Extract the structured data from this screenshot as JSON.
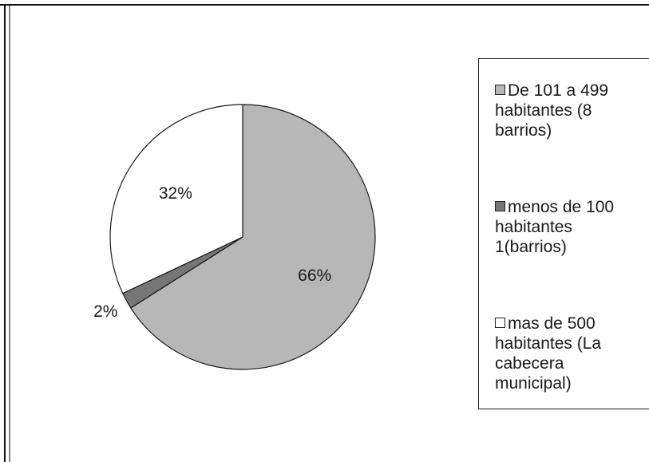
{
  "chart_data": {
    "type": "pie",
    "slices": [
      {
        "label": "De 101 a 499 habitantes (8 barrios)",
        "value": 66,
        "display": "66%",
        "color": "#b7b7b7"
      },
      {
        "label": "menos de 100 habitantes 1(barrios)",
        "value": 2,
        "display": "2%",
        "color": "#767676"
      },
      {
        "label": "mas de 500 habitantes (La cabecera municipal)",
        "value": 32,
        "display": "32%",
        "color": "#ffffff"
      }
    ],
    "legend": {
      "placement": "right",
      "entries": [
        {
          "text": "De 101 a 499\nhabitantes (8\nbarrios)",
          "color": "#b7b7b7"
        },
        {
          "text": "menos de 100\nhabitantes\n1(barrios)",
          "color": "#767676"
        },
        {
          "text": "mas de 500\nhabitantes (La\ncabecera\nmunicipal)",
          "color": "#ffffff"
        }
      ]
    }
  }
}
